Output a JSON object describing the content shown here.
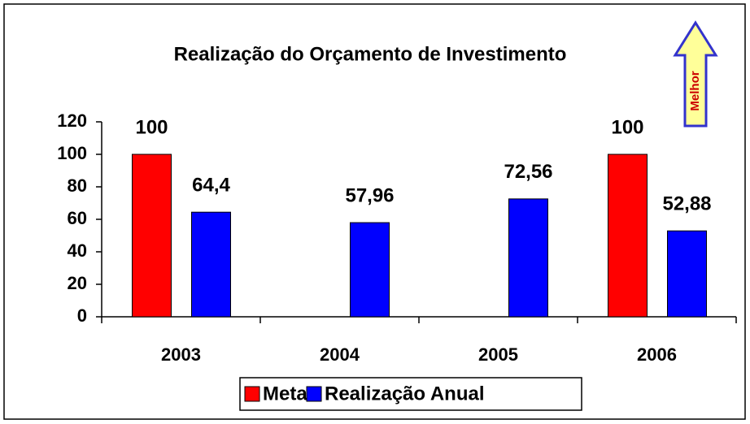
{
  "chart_data": {
    "type": "bar",
    "title": "Realização do Orçamento de Investimento",
    "annotation": "Melhor",
    "categories": [
      "2003",
      "2004",
      "2005",
      "2006"
    ],
    "series": [
      {
        "name": "Meta",
        "color": "#ff0000",
        "values": [
          100,
          null,
          null,
          100
        ],
        "value_labels": [
          "100",
          null,
          null,
          "100"
        ]
      },
      {
        "name": "Realização Anual",
        "color": "#0000ff",
        "values": [
          64.4,
          57.96,
          72.56,
          52.88
        ],
        "value_labels": [
          "64,4",
          "57,96",
          "72,56",
          "52,88"
        ]
      }
    ],
    "ylim": [
      0,
      120
    ],
    "yticks": [
      0,
      20,
      40,
      60,
      80,
      100,
      120
    ],
    "grid": false,
    "legend": "bottom"
  }
}
